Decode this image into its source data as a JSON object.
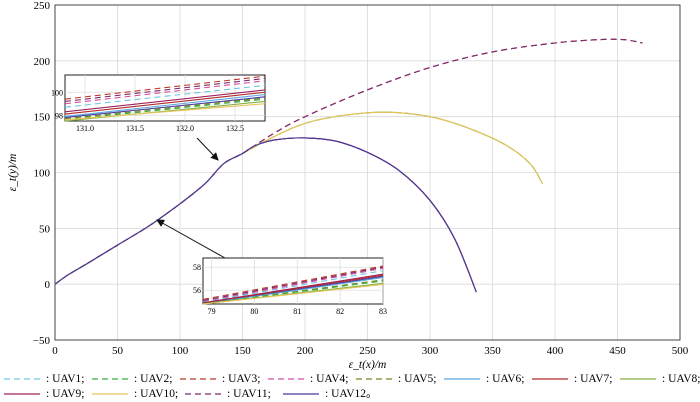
{
  "chart_data": {
    "type": "line",
    "xlabel": "ε_t(x)/m",
    "ylabel": "ε_t(y)/m",
    "xlim": [
      0,
      500
    ],
    "ylim": [
      -50,
      250
    ],
    "xticks": [
      "0",
      "50",
      "100",
      "150",
      "200",
      "250",
      "300",
      "350",
      "400",
      "450",
      "500"
    ],
    "yticks": [
      "−50",
      "0",
      "50",
      "100",
      "150",
      "200",
      "250"
    ],
    "grid": true,
    "legend_placement": "bottom",
    "series": [
      {
        "name": "UAV1",
        "color": "#6ec6e8",
        "dash": "6,4",
        "group": "A"
      },
      {
        "name": "UAV2",
        "color": "#3aae3a",
        "dash": "6,4",
        "group": "C"
      },
      {
        "name": "UAV3",
        "color": "#c0392b",
        "dash": "6,4",
        "group": "A"
      },
      {
        "name": "UAV4",
        "color": "#d04fa0",
        "dash": "6,4",
        "group": "A"
      },
      {
        "name": "UAV5",
        "color": "#6f8a1f",
        "dash": "6,4",
        "group": "B"
      },
      {
        "name": "UAV6",
        "color": "#5aa7e0",
        "dash": "",
        "group": "C"
      },
      {
        "name": "UAV7",
        "color": "#b22a2a",
        "dash": "",
        "group": "C"
      },
      {
        "name": "UAV8",
        "color": "#86b045",
        "dash": "",
        "group": "B"
      },
      {
        "name": "UAV9",
        "color": "#a0205a",
        "dash": "",
        "group": "C"
      },
      {
        "name": "UAV10",
        "color": "#e8c45a",
        "dash": "",
        "group": "B"
      },
      {
        "name": "UAV11",
        "color": "#7a2a6a",
        "dash": "6,4",
        "group": "A"
      },
      {
        "name": "UAV12",
        "color": "#4a3aa0",
        "dash": "",
        "group": "C"
      }
    ],
    "common_path": [
      [
        0,
        0
      ],
      [
        10,
        8
      ],
      [
        25,
        18
      ],
      [
        50,
        35
      ],
      [
        75,
        52
      ],
      [
        100,
        72
      ],
      [
        120,
        90
      ],
      [
        135,
        108
      ],
      [
        150,
        117
      ]
    ],
    "branch_A": [
      [
        150,
        117
      ],
      [
        175,
        135
      ],
      [
        200,
        150
      ],
      [
        250,
        174
      ],
      [
        300,
        194
      ],
      [
        350,
        208
      ],
      [
        400,
        216
      ],
      [
        435,
        219
      ],
      [
        455,
        219
      ],
      [
        470,
        216
      ]
    ],
    "branch_B": [
      [
        150,
        117
      ],
      [
        175,
        132
      ],
      [
        200,
        144
      ],
      [
        230,
        151
      ],
      [
        265,
        154
      ],
      [
        300,
        150
      ],
      [
        330,
        140
      ],
      [
        360,
        125
      ],
      [
        380,
        108
      ],
      [
        390,
        90
      ]
    ],
    "branch_C": [
      [
        150,
        117
      ],
      [
        160,
        124
      ],
      [
        175,
        129
      ],
      [
        200,
        131
      ],
      [
        225,
        128
      ],
      [
        250,
        118
      ],
      [
        275,
        102
      ],
      [
        300,
        75
      ],
      [
        320,
        40
      ],
      [
        337,
        -7
      ]
    ],
    "inset_top": {
      "xlim": [
        130.8,
        132.8
      ],
      "ylim": [
        97.5,
        101.5
      ],
      "xticks": [
        "131.0",
        "131.5",
        "132.0",
        "132.5"
      ],
      "yticks": [
        "98",
        "100"
      ]
    },
    "inset_bottom": {
      "xlim": [
        78.8,
        83.0
      ],
      "ylim": [
        54.8,
        58.8
      ],
      "xticks": [
        "79",
        "80",
        "81",
        "82",
        "83"
      ],
      "yticks": [
        "56",
        "58"
      ]
    }
  },
  "legend": {
    "row1": [
      ": UAV1;",
      ": UAV2;",
      ": UAV3;",
      ": UAV4;",
      ": UAV5;",
      ": UAV6;",
      ": UAV7;",
      ": UAV8;"
    ],
    "row2": [
      ": UAV9;",
      ": UAV10;",
      ": UAV11;",
      ": UAV12。"
    ]
  }
}
